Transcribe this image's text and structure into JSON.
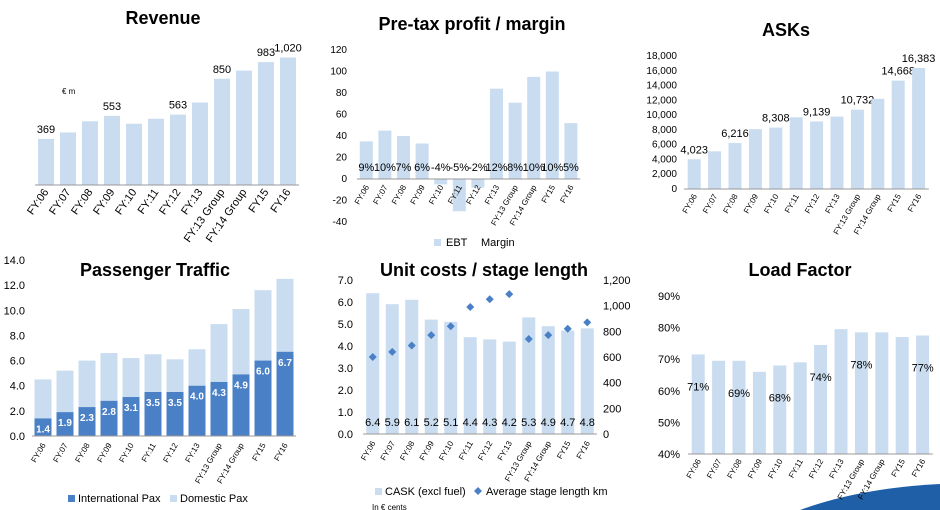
{
  "chart_data": [
    {
      "type": "bar",
      "title": "Revenue",
      "unit_note": "€ m",
      "categories": [
        "FY:06",
        "FY:07",
        "FY:08",
        "FY:09",
        "FY:10",
        "FY:11",
        "FY:12",
        "FY:13",
        "FY:13 Group",
        "FY:14 Group",
        "FY15",
        "FY16"
      ],
      "values": [
        369,
        420,
        510,
        553,
        490,
        530,
        563,
        660,
        850,
        915,
        983,
        1020
      ],
      "data_labels": [
        "369",
        "",
        "",
        "553",
        "",
        "",
        "563",
        "",
        "850",
        "",
        "983",
        "1,020"
      ],
      "ylim": [
        0,
        1200
      ],
      "colors": {
        "bar": "#c9dcf0"
      }
    },
    {
      "type": "bar",
      "title": "Pre-tax profit / margin",
      "categories": [
        "FY:06",
        "FY:07",
        "FY:08",
        "FY:09",
        "FY:10",
        "FY:11",
        "FY:12",
        "FY:13",
        "FY:13 Group",
        "FY:14 Group",
        "FY15",
        "FY16"
      ],
      "series": [
        {
          "name": "EBT",
          "values": [
            35,
            45,
            40,
            33,
            -5,
            -30,
            -8,
            84,
            71,
            95,
            100,
            52
          ]
        },
        {
          "name": "Margin",
          "values": [
            "9%",
            "10%",
            "7%",
            "6%",
            "-4%",
            "-5%",
            "-2%",
            "12%",
            "8%",
            "10%",
            "10%",
            "5%"
          ]
        }
      ],
      "yticks": [
        "120",
        "100",
        "80",
        "60",
        "40",
        "20",
        "0",
        "-20",
        "-40"
      ],
      "ylim": [
        -40,
        120
      ],
      "colors": {
        "bar": "#c9dcf0"
      }
    },
    {
      "type": "bar",
      "title": "ASKs",
      "categories": [
        "FY:06",
        "FY:07",
        "FY:08",
        "FY:09",
        "FY:10",
        "FY:11",
        "FY:12",
        "FY:13",
        "FY:13 Group",
        "FY:14 Group",
        "FY15",
        "FY16"
      ],
      "values": [
        4023,
        5100,
        6216,
        8100,
        8308,
        9700,
        9139,
        9800,
        10732,
        12200,
        14668,
        16383
      ],
      "data_labels": [
        "4,023",
        "",
        "6,216",
        "",
        "8,308",
        "",
        "9,139",
        "",
        "10,732",
        "",
        "14,668",
        "16,383"
      ],
      "yticks": [
        "18,000",
        "16,000",
        "14,000",
        "12,000",
        "10,000",
        "8,000",
        "6,000",
        "4,000",
        "2,000",
        "0"
      ],
      "ylim": [
        0,
        18000
      ],
      "colors": {
        "bar": "#c9dcf0"
      }
    },
    {
      "type": "bar",
      "stacked": true,
      "title": "Passenger Traffic",
      "categories": [
        "FY:06",
        "FY:07",
        "FY:08",
        "FY:09",
        "FY:10",
        "FY:11",
        "FY:12",
        "FY:13",
        "FY:13 Group",
        "FY:14 Group",
        "FY15",
        "FY16"
      ],
      "series": [
        {
          "name": "International Pax",
          "values": [
            1.4,
            1.9,
            2.3,
            2.8,
            3.1,
            3.5,
            3.5,
            4.0,
            4.3,
            4.9,
            6.0,
            6.7
          ],
          "labels": [
            "1.4",
            "1.9",
            "2.3",
            "2.8",
            "3.1",
            "3.5",
            "3.5",
            "4.0",
            "4.3",
            "4.9",
            "6.0",
            "6.7"
          ]
        },
        {
          "name": "Domestic Pax",
          "values": [
            3.1,
            3.3,
            3.7,
            3.8,
            3.1,
            3.0,
            2.6,
            2.9,
            4.6,
            5.2,
            5.6,
            5.8
          ]
        }
      ],
      "yticks": [
        "14.0",
        "12.0",
        "10.0",
        "8.0",
        "6.0",
        "4.0",
        "2.0",
        "0.0"
      ],
      "ylim": [
        0,
        14
      ],
      "colors": {
        "international": "#4a80c6",
        "domestic": "#c9dcf0"
      }
    },
    {
      "type": "bar",
      "title": "Unit costs / stage length",
      "categories": [
        "FY:06",
        "FY:07",
        "FY:08",
        "FY:09",
        "FY:10",
        "FY:11",
        "FY:12",
        "FY:13",
        "FY:13 Group",
        "FY:14 Group",
        "FY15",
        "FY16"
      ],
      "series": [
        {
          "name": "CASK (excl fuel)",
          "values": [
            6.4,
            5.9,
            6.1,
            5.2,
            5.1,
            4.4,
            4.3,
            4.2,
            5.3,
            4.9,
            4.7,
            4.8
          ],
          "labels": [
            "6.4",
            "5.9",
            "6.1",
            "5.2",
            "5.1",
            "4.4",
            "4.3",
            "4.2",
            "5.3",
            "4.9",
            "4.7",
            "4.8"
          ],
          "axis": "left"
        },
        {
          "name": "Average stage length km",
          "values": [
            600,
            640,
            690,
            770,
            840,
            990,
            1050,
            1090,
            740,
            770,
            820,
            870
          ],
          "axis": "right"
        }
      ],
      "left_yticks": [
        "7.0",
        "6.0",
        "5.0",
        "4.0",
        "3.0",
        "2.0",
        "1.0",
        "0.0"
      ],
      "right_yticks": [
        "1,200",
        "1,000",
        "800",
        "600",
        "400",
        "200",
        "0"
      ],
      "ylim_left": [
        0,
        7
      ],
      "ylim_right": [
        0,
        1200
      ],
      "footnote": "In € cents",
      "colors": {
        "bar": "#c9dcf0",
        "marker": "#4a80c6"
      }
    },
    {
      "type": "bar",
      "title": "Load Factor",
      "categories": [
        "FY:06",
        "FY:07",
        "FY:08",
        "FY:09",
        "FY:10",
        "FY:11",
        "FY:12",
        "FY:13",
        "FY:13 Group",
        "FY:14 Group",
        "FY15",
        "FY16"
      ],
      "values": [
        71.5,
        69.5,
        69.5,
        66,
        68,
        69,
        74.5,
        79.5,
        78.5,
        78.5,
        77,
        77.5
      ],
      "data_labels": [
        "71%",
        "",
        "69%",
        "",
        "68%",
        "",
        "74%",
        "",
        "78%",
        "",
        "",
        "77%"
      ],
      "yticks": [
        "90%",
        "80%",
        "70%",
        "60%",
        "50%",
        "40%"
      ],
      "ylim": [
        40,
        90
      ],
      "colors": {
        "bar": "#c9dcf0"
      }
    }
  ]
}
